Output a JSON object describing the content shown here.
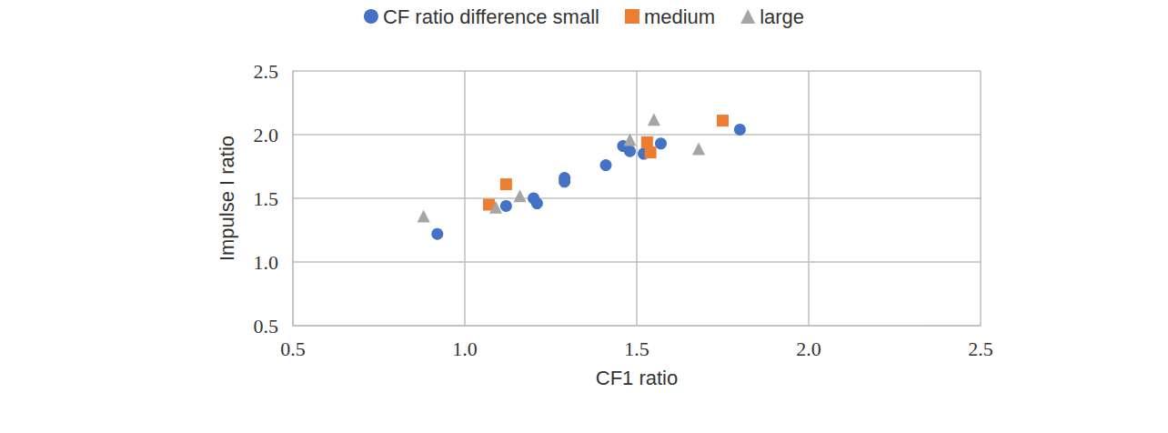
{
  "chart_data": {
    "type": "scatter",
    "xlabel": "CF1 ratio",
    "ylabel": "Impulse I ratio",
    "xlim": [
      0.5,
      2.5
    ],
    "ylim": [
      0.5,
      2.5
    ],
    "xticks": [
      {
        "value": 0.5,
        "label": "0.5"
      },
      {
        "value": 1,
        "label": "1.0"
      },
      {
        "value": 1.5,
        "label": "1.5"
      },
      {
        "value": 2,
        "label": "2.0"
      },
      {
        "value": 2.5,
        "label": "2.5"
      }
    ],
    "yticks": [
      {
        "value": 0.5,
        "label": "0.5"
      },
      {
        "value": 1,
        "label": "1.0"
      },
      {
        "value": 1.5,
        "label": "1.5"
      },
      {
        "value": 2,
        "label": "2.0"
      },
      {
        "value": 2.5,
        "label": "2.5"
      }
    ],
    "grid": true,
    "legend": "top",
    "series": [
      {
        "name": "CF ratio difference small",
        "color": "#4472c4",
        "marker": "circle",
        "x": [
          0.92,
          1.12,
          1.2,
          1.21,
          1.29,
          1.29,
          1.41,
          1.46,
          1.48,
          1.52,
          1.57,
          1.8
        ],
        "values": [
          1.22,
          1.44,
          1.5,
          1.46,
          1.66,
          1.63,
          1.76,
          1.91,
          1.87,
          1.85,
          1.93,
          2.04
        ]
      },
      {
        "name": "medium",
        "color": "#ed7d31",
        "marker": "square",
        "x": [
          1.07,
          1.12,
          1.53,
          1.54,
          1.75
        ],
        "values": [
          1.45,
          1.61,
          1.94,
          1.86,
          2.11
        ]
      },
      {
        "name": "large",
        "color": "#a5a5a5",
        "marker": "triangle",
        "x": [
          0.88,
          1.09,
          1.16,
          1.48,
          1.55,
          1.68
        ],
        "values": [
          1.36,
          1.43,
          1.52,
          1.96,
          2.12,
          1.89
        ]
      }
    ]
  }
}
